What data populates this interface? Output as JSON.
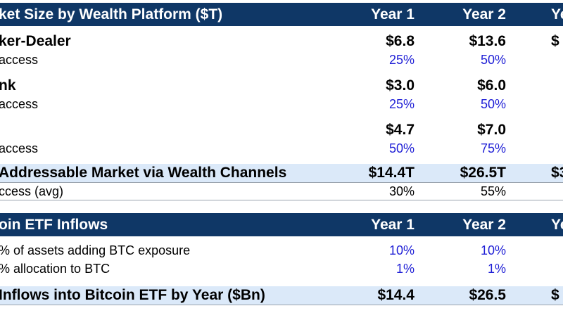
{
  "market": {
    "title": "ket Size by Wealth Platform ($T)",
    "col1": "Year 1",
    "col2": "Year 2",
    "col3": "Ye",
    "groups": [
      {
        "name": "ker-Dealer",
        "v1": "$6.8",
        "v2": "$13.6",
        "v3": "$",
        "access_label": "access",
        "a1": "25%",
        "a2": "50%"
      },
      {
        "name": "nk",
        "v1": "$3.0",
        "v2": "$6.0",
        "v3": "",
        "access_label": "access",
        "a1": "25%",
        "a2": "50%"
      },
      {
        "name": "",
        "v1": "$4.7",
        "v2": "$7.0",
        "v3": "",
        "access_label": "access",
        "a1": "50%",
        "a2": "75%"
      }
    ],
    "total": {
      "label": "Addressable Market via Wealth Channels",
      "v1": "$14.4T",
      "v2": "$26.5T",
      "v3": "$3"
    },
    "avg": {
      "label": "ccess (avg)",
      "v1": "30%",
      "v2": "55%"
    }
  },
  "inflows": {
    "title": "oin ETF Inflows",
    "col1": "Year 1",
    "col2": "Year 2",
    "col3": "Ye",
    "rows": [
      {
        "label": "% of assets adding BTC exposure",
        "v1": "10%",
        "v2": "10%"
      },
      {
        "label": "% allocation to BTC",
        "v1": "1%",
        "v2": "1%"
      }
    ],
    "total": {
      "label": "Inflows into Bitcoin ETF by Year ($Bn)",
      "v1": "$14.4",
      "v2": "$26.5",
      "v3": "$"
    }
  }
}
